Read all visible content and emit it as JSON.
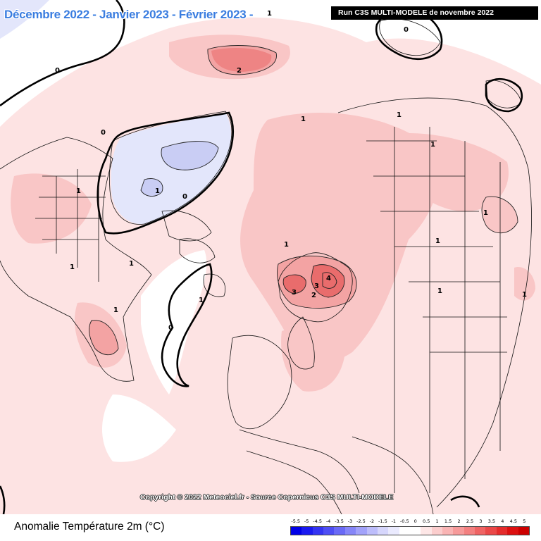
{
  "header": {
    "periods": "Décembre 2022 - Janvier 2023 - Février 2023 -",
    "run_label": "Run C3S MULTI-MODELE de novembre 2022"
  },
  "map": {
    "colors": {
      "land_border": "#000000",
      "contour": "#000000",
      "warm_1": "#fde3e3",
      "warm_2": "#f9c6c6",
      "warm_3": "#f3a3a3",
      "warm_4": "#e96c6c",
      "cool_1": "#e3e6fb",
      "cool_2": "#c9cdf4"
    },
    "contour_labels": [
      "1",
      "0",
      "2",
      "1",
      "0",
      "1",
      "1",
      "1",
      "1",
      "1",
      "0",
      "1",
      "1",
      "1",
      "1",
      "1",
      "4",
      "3",
      "3",
      "2",
      "1",
      "0",
      "0",
      "1",
      "1"
    ]
  },
  "footer": {
    "copyright": "Copyright © 2022 Meteociel.fr - Source Copernicus C3S MULTI-MODELE",
    "variable_label": "Anomalie Température 2m (°C)"
  },
  "legend": {
    "ticks": [
      "-5.5",
      "-5",
      "-4.5",
      "-4",
      "-3.5",
      "-3",
      "-2.5",
      "-2",
      "-1.5",
      "-1",
      "-0.5",
      "0",
      "0.5",
      "1",
      "1.5",
      "2",
      "2.5",
      "3",
      "3.5",
      "4",
      "4.5",
      "5"
    ],
    "colors": [
      "#0000e6",
      "#1a1af0",
      "#3434f2",
      "#4e4ef4",
      "#6a6af6",
      "#8686f8",
      "#a2a2fa",
      "#bdbdfb",
      "#d6d6fc",
      "#eaeafe",
      "#ffffff",
      "#ffffff",
      "#fde6e6",
      "#fbcdcd",
      "#f9b4b4",
      "#f69a9a",
      "#f38080",
      "#ef6464",
      "#ea4848",
      "#e42c2c",
      "#dc1010",
      "#cc0000"
    ]
  }
}
